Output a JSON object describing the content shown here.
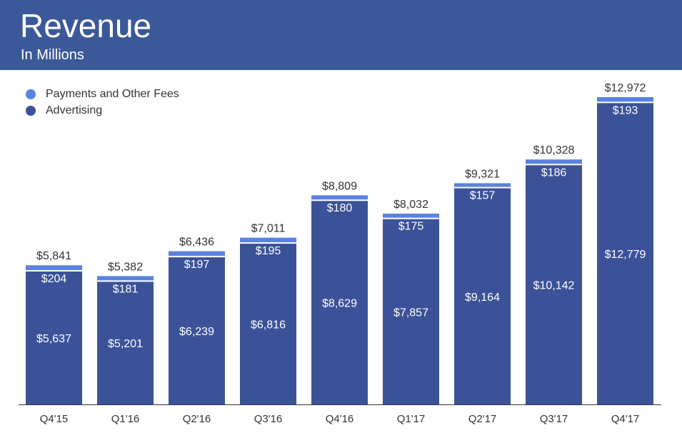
{
  "header": {
    "title": "Revenue",
    "subtitle": "In Millions"
  },
  "colors": {
    "header_bg": "#3b5998",
    "advertising": "#3b5298",
    "payments": "#5b82e0",
    "axis": "#333333"
  },
  "legend": [
    {
      "label": "Payments and Other Fees",
      "color": "#5b82e0"
    },
    {
      "label": "Advertising",
      "color": "#3b5298"
    }
  ],
  "chart_data": {
    "type": "bar",
    "stacked": true,
    "title": "Revenue",
    "subtitle": "In Millions",
    "categories": [
      "Q4'15",
      "Q1'16",
      "Q2'16",
      "Q3'16",
      "Q4'16",
      "Q1'17",
      "Q2'17",
      "Q3'17",
      "Q4'17"
    ],
    "series": [
      {
        "name": "Advertising",
        "values": [
          5637,
          5201,
          6239,
          6816,
          8629,
          7857,
          9164,
          10142,
          12779
        ]
      },
      {
        "name": "Payments and Other Fees",
        "values": [
          204,
          181,
          197,
          195,
          180,
          175,
          157,
          186,
          193
        ]
      }
    ],
    "totals": [
      5841,
      5382,
      6436,
      7011,
      8809,
      8032,
      9321,
      10328,
      12972
    ],
    "labels": {
      "advertising": [
        "$5,637",
        "$5,201",
        "$6,239",
        "$6,816",
        "$8,629",
        "$7,857",
        "$9,164",
        "$10,142",
        "$12,779"
      ],
      "payments": [
        "$204",
        "$181",
        "$197",
        "$195",
        "$180",
        "$175",
        "$157",
        "$186",
        "$193"
      ],
      "totals": [
        "$5,841",
        "$5,382",
        "$6,436",
        "$7,011",
        "$8,809",
        "$8,032",
        "$9,321",
        "$10,328",
        "$12,972"
      ]
    },
    "ylim": [
      0,
      13000
    ],
    "grid": false,
    "legend_position": "top-left"
  }
}
